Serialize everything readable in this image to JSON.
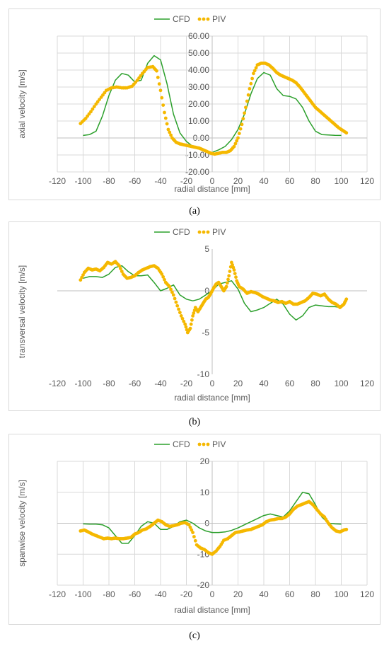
{
  "chart_data": [
    {
      "type": "line",
      "xlabel": "radial distance [mm]",
      "ylabel": "axial velocity [m/s]",
      "xlim": [
        -120,
        120
      ],
      "ylim": [
        -20,
        60
      ],
      "xticks": [
        "-120",
        "-100",
        "-80",
        "-60",
        "-40",
        "-20",
        "0",
        "20",
        "40",
        "60",
        "80",
        "100",
        "120"
      ],
      "yticks": [
        "-20.00",
        "-10.00",
        "0.00",
        "10.00",
        "20.00",
        "30.00",
        "40.00",
        "50.00",
        "60.00"
      ],
      "grid": true,
      "legend": "top-center",
      "sublabel": "(a)",
      "series": [
        {
          "name": "CFD",
          "style": "line",
          "color": "#2ca02c",
          "x": [
            -100,
            -95,
            -90,
            -85,
            -80,
            -75,
            -70,
            -65,
            -60,
            -55,
            -50,
            -45,
            -40,
            -35,
            -30,
            -25,
            -20,
            -15,
            -10,
            -5,
            0,
            5,
            10,
            15,
            20,
            25,
            30,
            35,
            40,
            45,
            50,
            55,
            60,
            65,
            70,
            75,
            80,
            85,
            90,
            95,
            100
          ],
          "y": [
            1.5,
            2,
            4,
            13,
            25,
            34,
            38,
            37,
            33,
            34,
            44,
            48.5,
            46,
            32,
            14,
            3,
            -2,
            -5,
            -6.5,
            -8,
            -8.5,
            -7,
            -5,
            -1,
            5,
            14,
            26,
            35,
            38.5,
            37,
            29,
            25,
            24.5,
            23,
            18,
            10,
            4,
            2,
            1.8,
            1.6,
            1.5
          ]
        },
        {
          "name": "PIV",
          "style": "dots",
          "color": "#f5b800",
          "x": [
            -102,
            -98,
            -94,
            -90,
            -86,
            -82,
            -78,
            -74,
            -70,
            -66,
            -62,
            -58,
            -54,
            -50,
            -46,
            -43,
            -40,
            -37,
            -34,
            -31,
            -28,
            -25,
            -22,
            -19,
            -16,
            -13,
            -10,
            -7,
            -4,
            -1,
            2,
            5,
            8,
            11,
            14,
            17,
            20,
            23,
            26,
            29,
            32,
            35,
            38,
            41,
            44,
            47,
            50,
            53,
            56,
            59,
            62,
            65,
            68,
            71,
            74,
            77,
            80,
            83,
            86,
            89,
            92,
            95,
            98,
            101,
            104
          ],
          "y": [
            8.5,
            11.5,
            15.5,
            20,
            24,
            28,
            29.5,
            30,
            29.5,
            29.5,
            30.5,
            34,
            38,
            41.5,
            42,
            39.5,
            28,
            15,
            5,
            0,
            -2.5,
            -3.5,
            -4,
            -4.5,
            -5,
            -5.5,
            -6,
            -7,
            -8,
            -9,
            -9.5,
            -9,
            -8.5,
            -8.5,
            -7.5,
            -5,
            0,
            8,
            18,
            29,
            38,
            43,
            44,
            44,
            43,
            41,
            38.5,
            37,
            36,
            35,
            34,
            32.5,
            30,
            27,
            24,
            21,
            18,
            16,
            14,
            12,
            10,
            8,
            6,
            4.5,
            3
          ]
        }
      ]
    },
    {
      "type": "line",
      "xlabel": "radial distance [mm]",
      "ylabel": "transversal velocity [m/s]",
      "xlim": [
        -120,
        120
      ],
      "ylim": [
        -10,
        5
      ],
      "xticks": [
        "-120",
        "-100",
        "-80",
        "-60",
        "-40",
        "-20",
        "0",
        "20",
        "40",
        "60",
        "80",
        "100",
        "120"
      ],
      "yticks": [
        "-10",
        "-5",
        "0",
        "5"
      ],
      "grid": false,
      "legend": "top-center",
      "sublabel": "(b)",
      "series": [
        {
          "name": "CFD",
          "style": "line",
          "color": "#2ca02c",
          "x": [
            -100,
            -95,
            -90,
            -85,
            -80,
            -75,
            -70,
            -65,
            -60,
            -55,
            -50,
            -45,
            -40,
            -35,
            -30,
            -25,
            -20,
            -15,
            -10,
            -5,
            0,
            5,
            10,
            15,
            20,
            25,
            30,
            35,
            40,
            45,
            50,
            55,
            60,
            65,
            70,
            75,
            80,
            85,
            90,
            95,
            100
          ],
          "y": [
            1.5,
            1.7,
            1.7,
            1.6,
            2,
            2.8,
            3,
            2.3,
            1.8,
            1.8,
            1.9,
            1,
            0,
            0.3,
            0.7,
            -0.5,
            -1,
            -1.2,
            -1,
            -0.5,
            0,
            0.8,
            1,
            1.2,
            0.2,
            -1.5,
            -2.5,
            -2.3,
            -2,
            -1.5,
            -1,
            -1.6,
            -2.8,
            -3.5,
            -3,
            -2,
            -1.7,
            -1.8,
            -1.9,
            -1.9,
            -2
          ]
        },
        {
          "name": "PIV",
          "style": "dots",
          "color": "#f5b800",
          "x": [
            -102,
            -99,
            -96,
            -93,
            -90,
            -87,
            -84,
            -81,
            -78,
            -75,
            -72,
            -69,
            -66,
            -63,
            -60,
            -57,
            -54,
            -51,
            -48,
            -45,
            -42,
            -39,
            -36,
            -33,
            -30,
            -27,
            -24,
            -21,
            -19,
            -17,
            -15,
            -13,
            -11,
            -9,
            -7,
            -5,
            -3,
            -1,
            1,
            3,
            5,
            7,
            9,
            11,
            13,
            15,
            17,
            19,
            21,
            24,
            27,
            30,
            33,
            36,
            39,
            42,
            45,
            48,
            51,
            54,
            57,
            60,
            63,
            66,
            69,
            72,
            75,
            78,
            81,
            84,
            87,
            90,
            93,
            96,
            99,
            102,
            104
          ],
          "y": [
            1.3,
            2.2,
            2.7,
            2.5,
            2.6,
            2.4,
            2.8,
            3.4,
            3.2,
            3.5,
            3.0,
            2.0,
            1.5,
            1.6,
            1.8,
            2.2,
            2.5,
            2.7,
            2.9,
            3.0,
            2.7,
            2.0,
            1.0,
            0.5,
            -0.5,
            -1.8,
            -3.0,
            -4.0,
            -5.0,
            -4.5,
            -3.0,
            -2.0,
            -2.5,
            -2.0,
            -1.5,
            -1.0,
            -0.8,
            -0.3,
            0.3,
            0.8,
            1.0,
            0.5,
            0.0,
            0.5,
            1.8,
            3.4,
            2.5,
            1.2,
            0.5,
            0.2,
            -0.3,
            -0.1,
            -0.2,
            -0.4,
            -0.7,
            -0.9,
            -1.1,
            -1.2,
            -1.4,
            -1.3,
            -1.5,
            -1.3,
            -1.6,
            -1.6,
            -1.4,
            -1.2,
            -0.8,
            -0.3,
            -0.4,
            -0.6,
            -0.4,
            -1.0,
            -1.4,
            -1.6,
            -2.0,
            -1.6,
            -1.0
          ]
        }
      ]
    },
    {
      "type": "line",
      "xlabel": "radial distance [mm]",
      "ylabel": "spanwise velocity [m/s]",
      "xlim": [
        -120,
        120
      ],
      "ylim": [
        -20,
        20
      ],
      "xticks": [
        "-120",
        "-100",
        "-80",
        "-60",
        "-40",
        "-20",
        "0",
        "20",
        "40",
        "60",
        "80",
        "100",
        "120"
      ],
      "yticks": [
        "-20",
        "-10",
        "0",
        "10",
        "20"
      ],
      "grid": true,
      "legend": "top-center",
      "sublabel": "(c)",
      "series": [
        {
          "name": "CFD",
          "style": "line",
          "color": "#2ca02c",
          "x": [
            -100,
            -95,
            -90,
            -85,
            -80,
            -75,
            -70,
            -65,
            -60,
            -55,
            -50,
            -45,
            -40,
            -35,
            -30,
            -25,
            -20,
            -15,
            -10,
            -5,
            0,
            5,
            10,
            15,
            20,
            25,
            30,
            35,
            40,
            45,
            50,
            55,
            60,
            65,
            70,
            75,
            80,
            85,
            90,
            95,
            100
          ],
          "y": [
            -0.2,
            -0.3,
            -0.3,
            -0.5,
            -1.5,
            -4,
            -6.5,
            -6.5,
            -4,
            -1,
            0.5,
            0,
            -2,
            -2,
            -1,
            0.5,
            1,
            0,
            -1.5,
            -2.5,
            -3,
            -3,
            -2.8,
            -2.3,
            -1.5,
            -0.5,
            0.5,
            1.5,
            2.5,
            3,
            2.5,
            2,
            4,
            7,
            10,
            9.5,
            6,
            2,
            0,
            -0.2,
            -0.3
          ]
        },
        {
          "name": "PIV",
          "style": "dots",
          "color": "#f5b800",
          "x": [
            -102,
            -99,
            -96,
            -93,
            -90,
            -87,
            -84,
            -81,
            -78,
            -75,
            -72,
            -69,
            -66,
            -63,
            -60,
            -57,
            -54,
            -51,
            -48,
            -45,
            -42,
            -39,
            -36,
            -33,
            -30,
            -27,
            -24,
            -21,
            -18,
            -15,
            -12,
            -9,
            -6,
            -3,
            0,
            3,
            6,
            9,
            12,
            15,
            18,
            21,
            24,
            27,
            30,
            33,
            36,
            39,
            42,
            45,
            48,
            51,
            54,
            57,
            60,
            63,
            66,
            69,
            72,
            75,
            78,
            81,
            84,
            87,
            90,
            93,
            96,
            99,
            102,
            104
          ],
          "y": [
            -2.5,
            -2.2,
            -2.8,
            -3.5,
            -4,
            -4.5,
            -5,
            -4.8,
            -5,
            -4.8,
            -5,
            -5,
            -4.8,
            -4.6,
            -3.5,
            -3,
            -2.2,
            -1.8,
            -1,
            0,
            1,
            0.5,
            -0.5,
            -1,
            -0.8,
            -0.5,
            0,
            0.2,
            -0.5,
            -3,
            -7,
            -8,
            -8.5,
            -9.5,
            -10,
            -9,
            -7.5,
            -5.5,
            -5,
            -4,
            -3,
            -2.8,
            -2.5,
            -2.2,
            -2,
            -1.5,
            -1,
            -0.5,
            0.5,
            1,
            1.2,
            1.5,
            1.5,
            2,
            3,
            4.5,
            5.5,
            6,
            6.5,
            7,
            6,
            4.5,
            3,
            2,
            0,
            -1.5,
            -2.5,
            -2.8,
            -2.2,
            -2
          ]
        }
      ]
    }
  ]
}
